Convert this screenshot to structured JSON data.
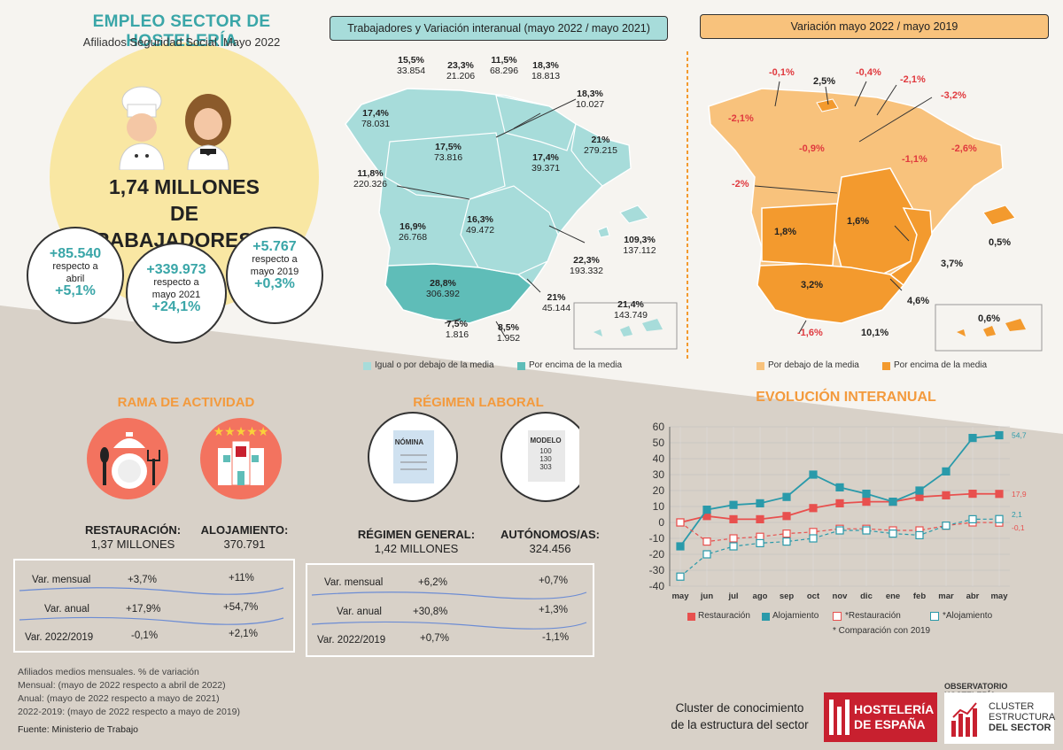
{
  "header": {
    "title": "EMPLEO SECTOR DE HOSTELERÍA",
    "subtitle": "Afiliados Seguridad Social. Mayo 2022",
    "headline_line1": "1,74 MILLONES",
    "headline_line2": "DE TRABAJADORES/AS"
  },
  "bubbles": [
    {
      "value": "+85.540",
      "text1": "respecto a",
      "text2": "abril",
      "pct": "+5,1%"
    },
    {
      "value": "+339.973",
      "text1": "respecto a",
      "text2": "mayo 2021",
      "pct": "+24,1%"
    },
    {
      "value": "+5.767",
      "text1": "respecto a",
      "text2": "mayo 2019",
      "pct": "+0,3%"
    }
  ],
  "map1": {
    "title": "Trabajadores y Variación interanual (mayo 2022 / mayo 2021)",
    "regions": [
      {
        "pct": "15,5%",
        "val": "33.854"
      },
      {
        "pct": "23,3%",
        "val": "21.206"
      },
      {
        "pct": "11,5%",
        "val": "68.296"
      },
      {
        "pct": "18,3%",
        "val": "18.813"
      },
      {
        "pct": "18,3%",
        "val": "10.027"
      },
      {
        "pct": "17,4%",
        "val": "78.031"
      },
      {
        "pct": "17,5%",
        "val": "73.816"
      },
      {
        "pct": "17,4%",
        "val": "39.371"
      },
      {
        "pct": "21%",
        "val": "279.215"
      },
      {
        "pct": "11,8%",
        "val": "220.326"
      },
      {
        "pct": "16,9%",
        "val": "26.768"
      },
      {
        "pct": "16,3%",
        "val": "49.472"
      },
      {
        "pct": "109,3%",
        "val": "137.112"
      },
      {
        "pct": "22,3%",
        "val": "193.332"
      },
      {
        "pct": "28,8%",
        "val": "306.392"
      },
      {
        "pct": "21%",
        "val": "45.144"
      },
      {
        "pct": "21,4%",
        "val": "143.749"
      },
      {
        "pct": "7,5%",
        "val": "1.816"
      },
      {
        "pct": "8,5%",
        "val": "1.952"
      }
    ],
    "legend": [
      "Igual o por debajo de la media",
      "Por encima de la media"
    ],
    "colors": {
      "below": "#a7dcda",
      "above": "#5fbdb8"
    }
  },
  "map2": {
    "title": "Variación mayo 2022 / mayo 2019",
    "regions": [
      "-0,1%",
      "2,5%",
      "-0,4%",
      "-2,1%",
      "-3,2%",
      "-2,1%",
      "-0,9%",
      "-1,1%",
      "-2,6%",
      "-2%",
      "1,8%",
      "1,6%",
      "0,5%",
      "3,7%",
      "3,2%",
      "4,6%",
      "0,6%",
      "-1,6%",
      "10,1%"
    ],
    "legend": [
      "Por debajo de la media",
      "Por encima de la media"
    ],
    "colors": {
      "below": "#f8c27c",
      "above": "#f39a2e"
    }
  },
  "rama": {
    "title": "RAMA DE ACTIVIDAD",
    "cat1_title": "RESTAURACIÓN:",
    "cat1_value": "1,37 MILLONES",
    "cat2_title": "ALOJAMIENTO:",
    "cat2_value": "370.791",
    "rows": [
      {
        "label": "Var. mensual",
        "v1": "+3,7%",
        "v2": "+11%"
      },
      {
        "label": "Var. anual",
        "v1": "+17,9%",
        "v2": "+54,7%"
      },
      {
        "label": "Var. 2022/2019",
        "v1": "-0,1%",
        "v2": "+2,1%"
      }
    ]
  },
  "regimen": {
    "title": "RÉGIMEN LABORAL",
    "doc1": "NÓMINA",
    "doc2_lines": [
      "MODELO",
      "100",
      "130",
      "303"
    ],
    "cat1_title": "RÉGIMEN GENERAL:",
    "cat1_value": "1,42 MILLONES",
    "cat2_title": "AUTÓNOMOS/AS:",
    "cat2_value": "324.456",
    "rows": [
      {
        "label": "Var. mensual",
        "v1": "+6,2%",
        "v2": "+0,7%"
      },
      {
        "label": "Var. anual",
        "v1": "+30,8%",
        "v2": "+1,3%"
      },
      {
        "label": "Var. 2022/2019",
        "v1": "+0,7%",
        "v2": "-1,1%"
      }
    ]
  },
  "chart_data": {
    "type": "line",
    "title": "EVOLUCIÓN INTERANUAL",
    "categories": [
      "may",
      "jun",
      "jul",
      "ago",
      "sep",
      "oct",
      "nov",
      "dic",
      "ene",
      "feb",
      "mar",
      "abr",
      "may"
    ],
    "ylim": [
      -40,
      60
    ],
    "yticks": [
      -40,
      -30,
      -20,
      -10,
      0,
      10,
      20,
      30,
      40,
      50,
      60
    ],
    "grid": true,
    "series": [
      {
        "name": "Restauración",
        "color": "#e8504e",
        "dashed": false,
        "values": [
          0,
          4,
          2,
          2,
          4,
          9,
          12,
          13,
          13,
          16,
          17,
          18,
          17.9
        ],
        "end_label": "17,9"
      },
      {
        "name": "Alojamiento",
        "color": "#2a9aaa",
        "dashed": false,
        "values": [
          -15,
          8,
          11,
          12,
          16,
          30,
          22,
          18,
          13,
          20,
          32,
          53,
          54.7
        ],
        "end_label": "54,7"
      },
      {
        "name": "*Restauración",
        "color": "#e8504e",
        "dashed": true,
        "values": [
          0,
          -12,
          -10,
          -9,
          -7,
          -6,
          -4,
          -4,
          -5,
          -5,
          -2,
          0,
          -0.1
        ],
        "end_label": "-0,1"
      },
      {
        "name": "*Alojamiento",
        "color": "#2a9aaa",
        "dashed": true,
        "values": [
          -34,
          -20,
          -15,
          -13,
          -12,
          -10,
          -5,
          -5,
          -7,
          -8,
          -2,
          2,
          2.1
        ],
        "end_label": "2,1"
      }
    ],
    "footnote": "* Comparación con 2019"
  },
  "footnotes": [
    "Afiliados medios mensuales. % de variación",
    "Mensual: (mayo de 2022 respecto a abril de 2022)",
    "Anual: (mayo de 2022 respecto a mayo de 2021)",
    "2022-2019: (mayo de 2022 respecto a mayo de 2019)",
    "Fuente: Ministerio de Trabajo"
  ],
  "brand": {
    "cluster_text1": "Cluster de conocimiento",
    "cluster_text2": "de la estructura del sector",
    "logo1_line1": "HOSTELERÍA",
    "logo1_line2": "DE ESPAÑA",
    "observatorio": "OBSERVATORIO HOSTELERÍA",
    "logo2_line1": "CLUSTER",
    "logo2_line2": "ESTRUCTURA",
    "logo2_line3": "DEL SECTOR",
    "red": "#c8202f"
  }
}
